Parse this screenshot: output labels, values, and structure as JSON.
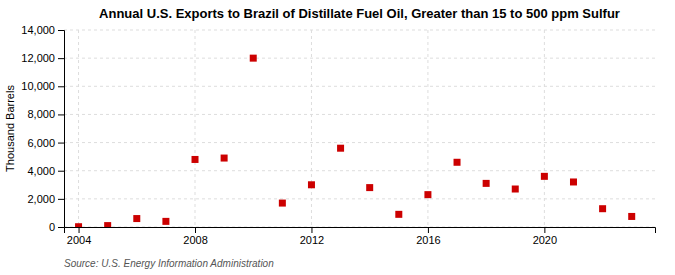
{
  "chart_data": {
    "type": "scatter",
    "title": "Annual U.S. Exports to Brazil of Distillate Fuel Oil, Greater than 15 to 500 ppm Sulfur",
    "ylabel": "Thousand Barrels",
    "source": "Source: U.S. Energy Information Administration",
    "x": [
      2004,
      2005,
      2006,
      2007,
      2008,
      2009,
      2010,
      2011,
      2012,
      2013,
      2014,
      2015,
      2016,
      2017,
      2018,
      2019,
      2020,
      2021,
      2022,
      2023
    ],
    "values": [
      20,
      100,
      600,
      400,
      4800,
      4900,
      12000,
      1700,
      3000,
      5600,
      2800,
      900,
      2300,
      4600,
      3100,
      2700,
      3600,
      3200,
      1300,
      750
    ],
    "color": "#cc0000",
    "marker": "square",
    "xlim": [
      2003.5,
      2023.8
    ],
    "xticks": [
      2004,
      2008,
      2012,
      2016,
      2020
    ],
    "ylim": [
      0,
      14000
    ],
    "yticks": [
      0,
      {
        "value": 2000,
        "label": "2,000"
      },
      {
        "value": 4000,
        "label": "4,000"
      },
      {
        "value": 6000,
        "label": "6,000"
      },
      {
        "value": 8000,
        "label": "8,000"
      },
      {
        "value": 10000,
        "label": "10,000"
      },
      {
        "value": 12000,
        "label": "12,000"
      },
      {
        "value": 14000,
        "label": "14,000"
      }
    ],
    "grid": true
  }
}
